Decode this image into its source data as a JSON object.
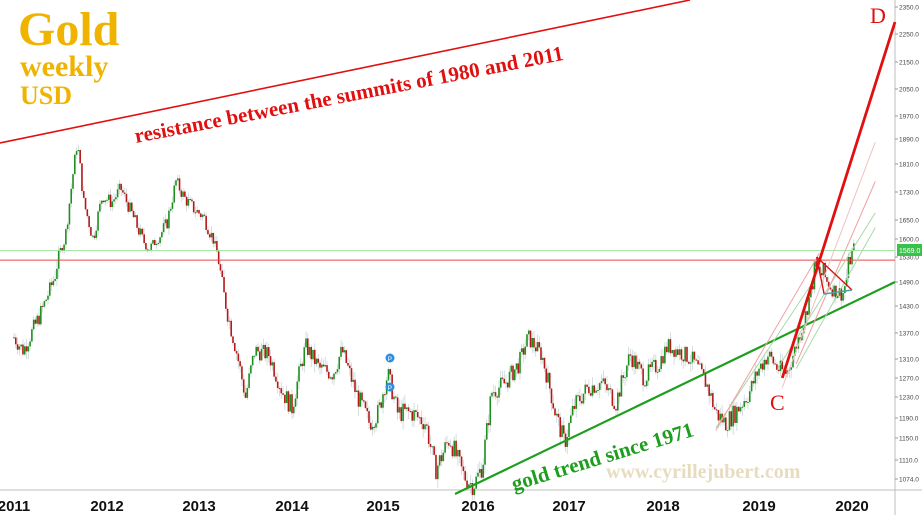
{
  "chart_data": {
    "type": "candlestick",
    "title": "Gold",
    "subtitle_1": "weekly",
    "subtitle_2": "USD",
    "title_color": "#f0b400",
    "watermark": "www.cyrillejubert.com",
    "y_ticks": [
      "2350.0",
      "2250.0",
      "2150.0",
      "2050.0",
      "1970.0",
      "1890.0",
      "1810.0",
      "1730.0",
      "1650.0",
      "1600.0",
      "1530.0",
      "1490.0",
      "1430.0",
      "1370.0",
      "1310.0",
      "1270.0",
      "1230.0",
      "1190.0",
      "1150.0",
      "1110.0",
      "1074.0"
    ],
    "x_ticks": [
      "2011",
      "2012",
      "2013",
      "2014",
      "2015",
      "2016",
      "2017",
      "2018",
      "2019",
      "2020"
    ],
    "last_price_label": "1569.0",
    "last_price_color": "#39c24a",
    "up_color": "#1d8f1d",
    "down_color": "#b51818",
    "marker_label": "P",
    "annotations": [
      {
        "text": "resistance between the summits of 1980 and 2011",
        "color": "#e01010"
      },
      {
        "text": "gold trend since 1971",
        "color": "#1e9e1e"
      },
      {
        "text": "C",
        "color": "#e01010"
      },
      {
        "text": "D",
        "color": "#e01010"
      }
    ],
    "price_path_anchors": [
      [
        2011.0,
        1360
      ],
      [
        2011.1,
        1330
      ],
      [
        2011.3,
        1420
      ],
      [
        2011.45,
        1510
      ],
      [
        2011.55,
        1600
      ],
      [
        2011.68,
        1880
      ],
      [
        2011.75,
        1700
      ],
      [
        2011.85,
        1600
      ],
      [
        2011.95,
        1720
      ],
      [
        2012.05,
        1700
      ],
      [
        2012.15,
        1740
      ],
      [
        2012.3,
        1650
      ],
      [
        2012.45,
        1560
      ],
      [
        2012.55,
        1600
      ],
      [
        2012.65,
        1640
      ],
      [
        2012.75,
        1760
      ],
      [
        2012.85,
        1710
      ],
      [
        2012.95,
        1680
      ],
      [
        2013.05,
        1660
      ],
      [
        2013.15,
        1600
      ],
      [
        2013.3,
        1420
      ],
      [
        2013.4,
        1330
      ],
      [
        2013.5,
        1230
      ],
      [
        2013.6,
        1330
      ],
      [
        2013.75,
        1320
      ],
      [
        2013.9,
        1240
      ],
      [
        2014.0,
        1210
      ],
      [
        2014.15,
        1340
      ],
      [
        2014.3,
        1290
      ],
      [
        2014.45,
        1280
      ],
      [
        2014.55,
        1330
      ],
      [
        2014.7,
        1240
      ],
      [
        2014.85,
        1180
      ],
      [
        2014.95,
        1200
      ],
      [
        2015.05,
        1280
      ],
      [
        2015.15,
        1200
      ],
      [
        2015.3,
        1200
      ],
      [
        2015.45,
        1180
      ],
      [
        2015.55,
        1090
      ],
      [
        2015.7,
        1150
      ],
      [
        2015.85,
        1080
      ],
      [
        2015.95,
        1060
      ],
      [
        2016.05,
        1100
      ],
      [
        2016.15,
        1240
      ],
      [
        2016.3,
        1260
      ],
      [
        2016.45,
        1300
      ],
      [
        2016.55,
        1360
      ],
      [
        2016.7,
        1320
      ],
      [
        2016.85,
        1200
      ],
      [
        2016.95,
        1140
      ],
      [
        2017.05,
        1210
      ],
      [
        2017.2,
        1250
      ],
      [
        2017.35,
        1260
      ],
      [
        2017.5,
        1220
      ],
      [
        2017.65,
        1320
      ],
      [
        2017.8,
        1270
      ],
      [
        2017.95,
        1300
      ],
      [
        2018.05,
        1340
      ],
      [
        2018.15,
        1330
      ],
      [
        2018.3,
        1310
      ],
      [
        2018.45,
        1260
      ],
      [
        2018.55,
        1200
      ],
      [
        2018.65,
        1180
      ],
      [
        2018.75,
        1200
      ],
      [
        2018.9,
        1240
      ],
      [
        2019.0,
        1290
      ],
      [
        2019.1,
        1320
      ],
      [
        2019.2,
        1290
      ],
      [
        2019.3,
        1280
      ],
      [
        2019.4,
        1340
      ],
      [
        2019.5,
        1410
      ],
      [
        2019.6,
        1510
      ],
      [
        2019.7,
        1500
      ],
      [
        2019.8,
        1470
      ],
      [
        2019.9,
        1460
      ],
      [
        2019.97,
        1520
      ],
      [
        2020.02,
        1569
      ]
    ]
  },
  "pane_layout": {
    "x_start": 2011.0,
    "x_end": 2020.25,
    "tick_years": [
      2011,
      2012,
      2013,
      2014,
      2015,
      2016,
      2017,
      2018,
      2019,
      2020
    ]
  }
}
